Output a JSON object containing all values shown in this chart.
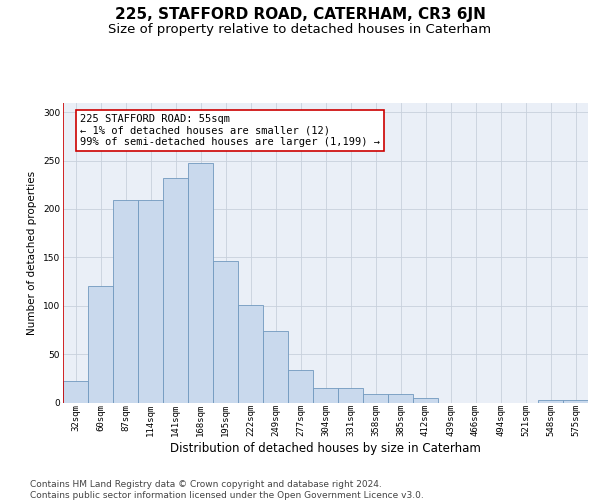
{
  "title": "225, STAFFORD ROAD, CATERHAM, CR3 6JN",
  "subtitle": "Size of property relative to detached houses in Caterham",
  "xlabel": "Distribution of detached houses by size in Caterham",
  "ylabel": "Number of detached properties",
  "bar_labels": [
    "32sqm",
    "60sqm",
    "87sqm",
    "114sqm",
    "141sqm",
    "168sqm",
    "195sqm",
    "222sqm",
    "249sqm",
    "277sqm",
    "304sqm",
    "331sqm",
    "358sqm",
    "385sqm",
    "412sqm",
    "439sqm",
    "466sqm",
    "494sqm",
    "521sqm",
    "548sqm",
    "575sqm"
  ],
  "bar_values": [
    22,
    120,
    209,
    209,
    232,
    248,
    146,
    101,
    74,
    34,
    15,
    15,
    9,
    9,
    5,
    0,
    0,
    0,
    0,
    3,
    3
  ],
  "bar_color": "#c9d9ed",
  "bar_edge_color": "#7098be",
  "vline_color": "#cc0000",
  "annotation_text": "225 STAFFORD ROAD: 55sqm\n← 1% of detached houses are smaller (12)\n99% of semi-detached houses are larger (1,199) →",
  "annotation_box_color": "#ffffff",
  "annotation_box_edge_color": "#cc0000",
  "ylim": [
    0,
    310
  ],
  "yticks": [
    0,
    50,
    100,
    150,
    200,
    250,
    300
  ],
  "grid_color": "#c8d0dc",
  "bg_color": "#eaeff7",
  "footer_line1": "Contains HM Land Registry data © Crown copyright and database right 2024.",
  "footer_line2": "Contains public sector information licensed under the Open Government Licence v3.0.",
  "title_fontsize": 11,
  "subtitle_fontsize": 9.5,
  "xlabel_fontsize": 8.5,
  "ylabel_fontsize": 7.5,
  "tick_fontsize": 6.5,
  "ann_fontsize": 7.5,
  "footer_fontsize": 6.5
}
